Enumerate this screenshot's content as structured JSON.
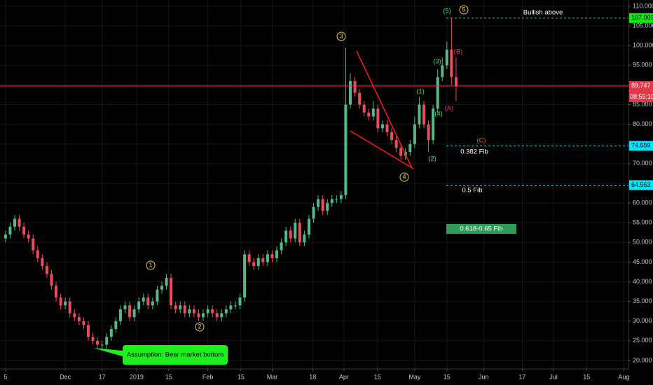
{
  "chart_data": {
    "type": "candlestick",
    "open": [
      51,
      52,
      54,
      56,
      54,
      52,
      51,
      48,
      46,
      44,
      42,
      39,
      36,
      34,
      35,
      32,
      31,
      30,
      29,
      26,
      25,
      24,
      24,
      26,
      28,
      30,
      33,
      34,
      31,
      33,
      35,
      36,
      34,
      35,
      38,
      39,
      41,
      34,
      33,
      34,
      32,
      33,
      32,
      31,
      32,
      33,
      32,
      31,
      32,
      33,
      34,
      34,
      36,
      47,
      45,
      44,
      46,
      45,
      47,
      46,
      48,
      50,
      53,
      51,
      55,
      50,
      52,
      56,
      59,
      61,
      58,
      60,
      61,
      61,
      62,
      85,
      91,
      88,
      85,
      83,
      82,
      84,
      79,
      80,
      78,
      76,
      74,
      72,
      73,
      75,
      80,
      85,
      80,
      76,
      84,
      92,
      95,
      99,
      92
    ],
    "high": [
      53,
      55,
      57,
      57,
      55,
      53,
      52,
      49,
      47,
      45,
      43,
      40,
      37,
      36,
      36,
      33,
      32,
      31,
      30,
      27,
      26,
      25,
      27,
      29,
      31,
      34,
      35,
      35,
      34,
      36,
      37,
      37,
      36,
      39,
      40,
      42,
      42,
      35,
      35,
      35,
      34,
      34,
      33,
      33,
      34,
      34,
      33,
      33,
      34,
      35,
      35,
      37,
      48,
      48,
      46,
      47,
      47,
      48,
      48,
      49,
      51,
      54,
      54,
      56,
      56,
      53,
      57,
      60,
      62,
      62,
      61,
      62,
      62,
      63,
      99.5,
      93,
      92,
      89,
      86,
      84,
      86,
      85,
      81,
      81,
      79,
      77,
      75,
      74,
      76,
      82,
      87,
      86,
      81,
      85,
      94,
      97,
      101,
      107.003,
      97
    ],
    "low": [
      50,
      51,
      53,
      53,
      51,
      50,
      47,
      45,
      43,
      41,
      38,
      35,
      33,
      33,
      31,
      30,
      29,
      28,
      25,
      24,
      23,
      23,
      23,
      25,
      27,
      29,
      32,
      30,
      30,
      32,
      34,
      33,
      33,
      34,
      37,
      38,
      33,
      32,
      32,
      31,
      31,
      31,
      30,
      30,
      31,
      31,
      30,
      30,
      31,
      32,
      33,
      33,
      35,
      44,
      43,
      43,
      44,
      44,
      45,
      45,
      47,
      49,
      50,
      50,
      49,
      49,
      51,
      55,
      58,
      57,
      57,
      59,
      60,
      60,
      61,
      84,
      87,
      84,
      82,
      81,
      81,
      78,
      78,
      77,
      75,
      73,
      71,
      71,
      72,
      74,
      79,
      79,
      73,
      75,
      83,
      91,
      94,
      90,
      86
    ],
    "close": [
      52,
      54,
      56,
      54,
      52,
      51,
      48,
      46,
      44,
      42,
      39,
      36,
      34,
      35,
      32,
      31,
      30,
      29,
      26,
      25,
      24,
      24,
      26,
      28,
      30,
      33,
      34,
      31,
      33,
      35,
      36,
      34,
      35,
      38,
      39,
      41,
      34,
      33,
      34,
      32,
      33,
      32,
      31,
      32,
      33,
      32,
      31,
      32,
      33,
      34,
      34,
      36,
      47,
      45,
      44,
      46,
      45,
      47,
      46,
      48,
      50,
      53,
      51,
      55,
      50,
      52,
      56,
      59,
      61,
      58,
      60,
      61,
      61,
      62,
      85,
      91,
      88,
      85,
      83,
      82,
      84,
      79,
      80,
      78,
      76,
      74,
      72,
      73,
      75,
      80,
      85,
      80,
      76,
      84,
      92,
      95,
      99,
      92,
      89.747
    ],
    "up_color": "#53b987",
    "down_color": "#eb4d5c",
    "grid": true,
    "xlim": [
      -1.2,
      135.5
    ],
    "xticks": [
      {
        "value": 0,
        "label": "5"
      },
      {
        "value": 13,
        "label": "Dec"
      },
      {
        "value": 21,
        "label": "17"
      },
      {
        "value": 28.5,
        "label": "2019"
      },
      {
        "value": 35.5,
        "label": "15"
      },
      {
        "value": 44,
        "label": "Feb"
      },
      {
        "value": 51.2,
        "label": "15"
      },
      {
        "value": 58,
        "label": "Mar"
      },
      {
        "value": 66.8,
        "label": "18"
      },
      {
        "value": 73.6,
        "label": "Apr"
      },
      {
        "value": 80.9,
        "label": "15"
      },
      {
        "value": 89,
        "label": "May"
      },
      {
        "value": 96,
        "label": "15"
      },
      {
        "value": 104,
        "label": "Jun"
      },
      {
        "value": 112.4,
        "label": "17"
      },
      {
        "value": 119.2,
        "label": "Jul"
      },
      {
        "value": 126.4,
        "label": "15"
      },
      {
        "value": 134.5,
        "label": "Aug"
      }
    ],
    "ylim": [
      17.86,
      111.6
    ],
    "yticks": [
      {
        "value": 20,
        "label": "20.000"
      },
      {
        "value": 25,
        "label": "25.000"
      },
      {
        "value": 30,
        "label": "30.000"
      },
      {
        "value": 35,
        "label": "35.000"
      },
      {
        "value": 40,
        "label": "40.000"
      },
      {
        "value": 45,
        "label": "45.000"
      },
      {
        "value": 50,
        "label": "50.000"
      },
      {
        "value": 55,
        "label": "55.000"
      },
      {
        "value": 60,
        "label": "60.000"
      },
      {
        "value": 65,
        "label": "65.000"
      },
      {
        "value": 70,
        "label": "70.000"
      },
      {
        "value": 75,
        "label": "75.000"
      },
      {
        "value": 80,
        "label": "80.000"
      },
      {
        "value": 85,
        "label": "85.000"
      },
      {
        "value": 90,
        "label": "90.000"
      },
      {
        "value": 95,
        "label": "95.000"
      },
      {
        "value": 100,
        "label": "100.000"
      },
      {
        "value": 105,
        "label": "105.000"
      },
      {
        "value": 110,
        "label": "110.000"
      }
    ],
    "current_price": {
      "value": 89.747,
      "countdown": "08:55:10",
      "color": "#e0394a"
    },
    "price_lines": [
      {
        "value": 107.003,
        "color": "#18e418"
      },
      {
        "value": 74.559,
        "color": "#00e5ff"
      },
      {
        "value": 64.563,
        "color": "#00e5ff"
      }
    ],
    "annotations": [
      "Bullish above",
      "0.382 Fib",
      "0.5 Fib",
      "0.618-0.65 Fib",
      "Assumption: Bear market bottom",
      "3",
      "5",
      "4",
      "1",
      "2",
      "(5)",
      "(3)",
      "(1)",
      "(4)",
      "(2)",
      "(B)",
      "(A)",
      "(C)"
    ]
  }
}
